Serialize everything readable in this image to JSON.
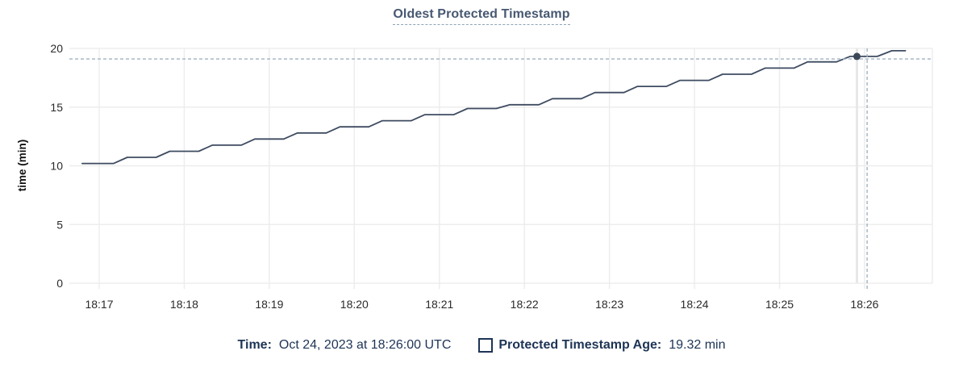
{
  "header": {
    "title": "Oldest Protected Timestamp"
  },
  "colors": {
    "title": "#475872",
    "title_underline": "#8ea4b6",
    "line": "#3e4b61",
    "gridline": "#ededed",
    "hover_column": "#e8e8e8",
    "crosshair_dashed": "#9fb2c2",
    "dot": "#3a4757",
    "tick_label": "#2b2b2b",
    "axis_title": "#111111",
    "footer_text": "#1d3456"
  },
  "chart_data": {
    "type": "line",
    "title": "Oldest Protected Timestamp",
    "xlabel": "",
    "ylabel": "time (min)",
    "ylim": [
      0,
      20
    ],
    "yticks": [
      0,
      5,
      10,
      15,
      20
    ],
    "ytick_labels": [
      "0",
      "5",
      "10",
      "15",
      "20"
    ],
    "xticks": [
      "18:17",
      "18:18",
      "18:19",
      "18:20",
      "18:21",
      "18:22",
      "18:23",
      "18:24",
      "18:25",
      "18:26"
    ],
    "x_domain_minutes_from_1817": [
      -0.33,
      9.8
    ],
    "grid": true,
    "legend_position": "bottom",
    "series": [
      {
        "name": "Protected Timestamp Age",
        "unit": "min",
        "points_t_v": [
          [
            -0.2,
            10.2
          ],
          [
            0.17,
            10.2
          ],
          [
            0.33,
            10.72
          ],
          [
            0.67,
            10.72
          ],
          [
            0.83,
            11.24
          ],
          [
            1.17,
            11.24
          ],
          [
            1.33,
            11.76
          ],
          [
            1.67,
            11.76
          ],
          [
            1.83,
            12.28
          ],
          [
            2.17,
            12.28
          ],
          [
            2.33,
            12.8
          ],
          [
            2.67,
            12.8
          ],
          [
            2.83,
            13.32
          ],
          [
            3.17,
            13.32
          ],
          [
            3.33,
            13.84
          ],
          [
            3.67,
            13.84
          ],
          [
            3.83,
            14.36
          ],
          [
            4.17,
            14.36
          ],
          [
            4.33,
            14.88
          ],
          [
            4.67,
            14.88
          ],
          [
            4.83,
            15.2
          ],
          [
            5.17,
            15.2
          ],
          [
            5.33,
            15.72
          ],
          [
            5.67,
            15.72
          ],
          [
            5.83,
            16.24
          ],
          [
            6.17,
            16.24
          ],
          [
            6.33,
            16.76
          ],
          [
            6.67,
            16.76
          ],
          [
            6.83,
            17.28
          ],
          [
            7.17,
            17.28
          ],
          [
            7.33,
            17.8
          ],
          [
            7.67,
            17.8
          ],
          [
            7.83,
            18.32
          ],
          [
            8.17,
            18.32
          ],
          [
            8.33,
            18.85
          ],
          [
            8.67,
            18.85
          ],
          [
            8.83,
            19.32
          ],
          [
            9.15,
            19.32
          ],
          [
            9.32,
            19.8
          ],
          [
            9.48,
            19.8
          ]
        ]
      }
    ],
    "hover": {
      "snapped_point": {
        "time": "18:26:00",
        "value_min": 19.32,
        "t_minutes": 8.91,
        "v": 19.32
      },
      "cursor": {
        "t_minutes": 9.03,
        "v": 19.1
      }
    }
  },
  "footer": {
    "time_label": "Time:",
    "time_value": "Oct 24, 2023 at 18:26:00 UTC",
    "series_label": "Protected Timestamp Age:",
    "series_value": "19.32 min"
  }
}
